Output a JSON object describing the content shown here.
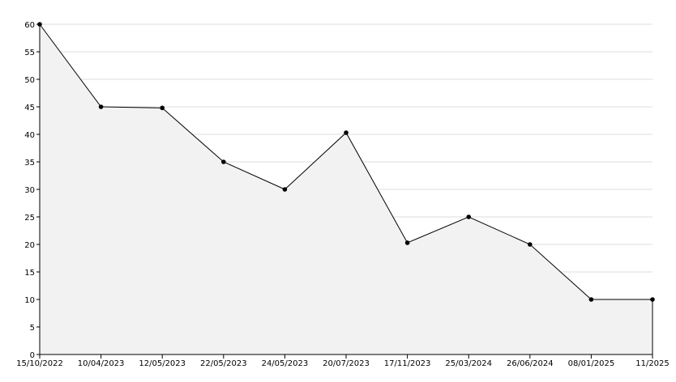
{
  "chart_data": {
    "type": "area",
    "title": "",
    "xlabel": "",
    "ylabel": "",
    "categories": [
      "15/10/2022",
      "10/04/2023",
      "12/05/2023",
      "22/05/2023",
      "24/05/2023",
      "20/07/2023",
      "17/11/2023",
      "25/03/2024",
      "26/06/2024",
      "08/01/2025",
      "11/2025"
    ],
    "series": [
      {
        "values": [
          60,
          45,
          44.8,
          35,
          30,
          40.3,
          20.3,
          25,
          20,
          10,
          10
        ]
      }
    ],
    "ylim": [
      0,
      60
    ],
    "yticks": [
      0,
      5,
      10,
      15,
      20,
      25,
      30,
      35,
      40,
      45,
      50,
      55,
      60
    ],
    "grid": true,
    "legend": "none",
    "colors": {
      "line": "#000000",
      "fill": "#f2f2f2",
      "grid": "#dddddd",
      "marker": "#000000"
    }
  }
}
